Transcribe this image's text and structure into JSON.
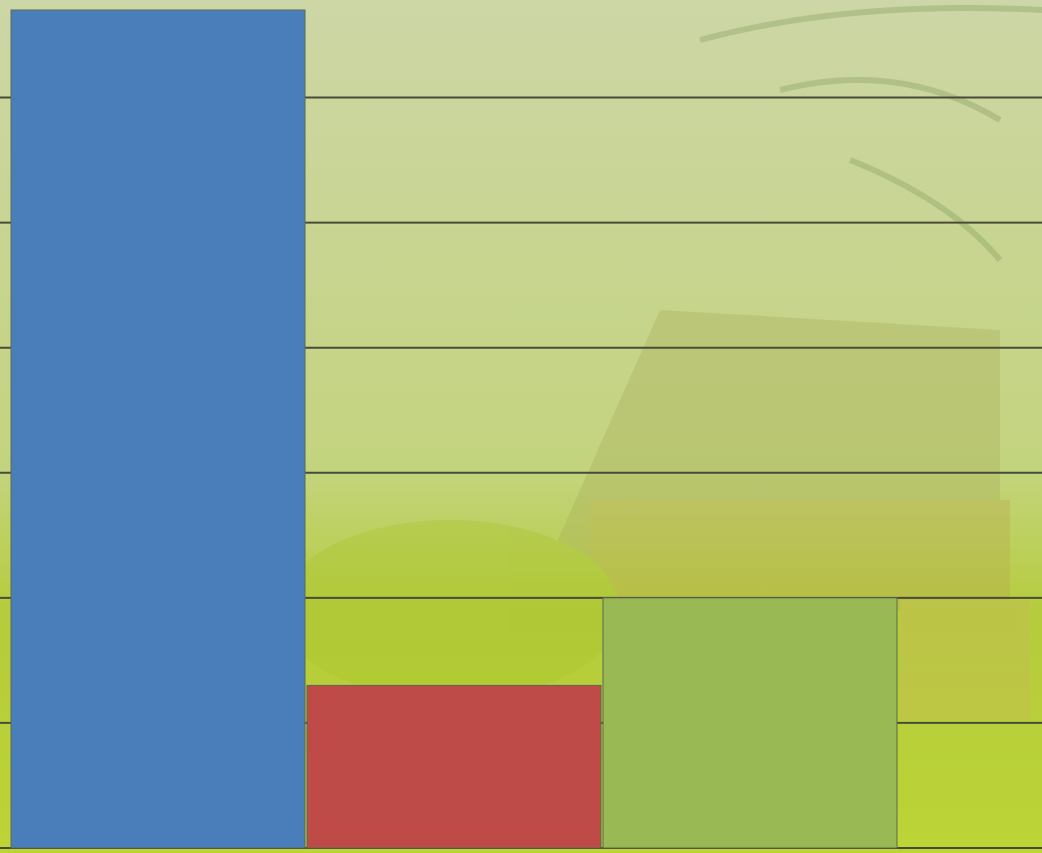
{
  "chart_data": {
    "type": "bar",
    "categories": [
      null,
      null,
      null
    ],
    "series": [
      {
        "color": "#4a7ebb",
        "values": [
          6.7,
          null,
          null
        ]
      },
      {
        "color": "#be4b48",
        "values": [
          null,
          1.3,
          null
        ]
      },
      {
        "color": "#98b954",
        "values": [
          null,
          null,
          2.0
        ]
      }
    ],
    "ylim": [
      0,
      6.78
    ],
    "yticks": [
      0,
      1,
      2,
      3,
      4,
      5,
      6
    ],
    "grid": true
  }
}
